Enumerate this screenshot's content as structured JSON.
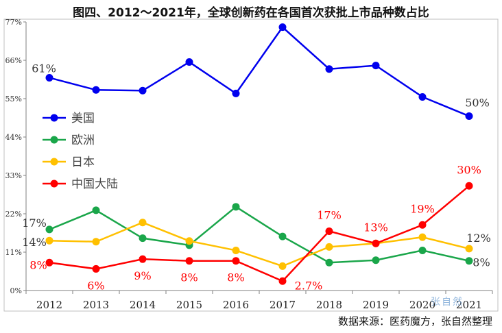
{
  "chart_data": {
    "type": "line",
    "title": "图四、2012～2021年，全球创新药在各国首次获批上市品种数占比",
    "xlabel": "",
    "ylabel": "",
    "categories": [
      "2012",
      "2013",
      "2014",
      "2015",
      "2016",
      "2017",
      "2018",
      "2019",
      "2020",
      "2021"
    ],
    "y_ticks": [
      "0%",
      "11%",
      "22%",
      "33%",
      "44%",
      "55%",
      "66%",
      "77%"
    ],
    "ylim": [
      0,
      77
    ],
    "grid": false,
    "legend_position": "left",
    "series": [
      {
        "name": "美国",
        "color": "#0000ee",
        "values": [
          61,
          57.5,
          57.3,
          65.5,
          56.5,
          75.5,
          63.5,
          64.5,
          55.5,
          50
        ],
        "labels": [
          "61%",
          "",
          "",
          "",
          "",
          "",
          "",
          "",
          "",
          "50%"
        ]
      },
      {
        "name": "欧洲",
        "color": "#1aa64a",
        "values": [
          17.5,
          23,
          15,
          13,
          24,
          15.5,
          8,
          8.7,
          11.5,
          8.5
        ],
        "labels": [
          "17%",
          "",
          "",
          "",
          "",
          "",
          "",
          "",
          "",
          "8%"
        ]
      },
      {
        "name": "日本",
        "color": "#ffc000",
        "values": [
          14.3,
          14,
          19.5,
          14.2,
          11.5,
          7,
          12.5,
          13.5,
          15.3,
          12
        ],
        "labels": [
          "14%",
          "",
          "",
          "",
          "",
          "",
          "",
          "",
          "",
          "12%"
        ]
      },
      {
        "name": "中国大陆",
        "color": "#ff0000",
        "values": [
          8,
          6.2,
          9,
          8.5,
          8.5,
          2.7,
          17,
          13.5,
          18.8,
          30
        ],
        "labels": [
          "8%",
          "6%",
          "9%",
          "8%",
          "8%",
          "2.7%",
          "17%",
          "13%",
          "19%",
          "30%"
        ]
      }
    ]
  },
  "source_note": "数据来源：医药魔方，张自然整理",
  "watermark": "张自然"
}
